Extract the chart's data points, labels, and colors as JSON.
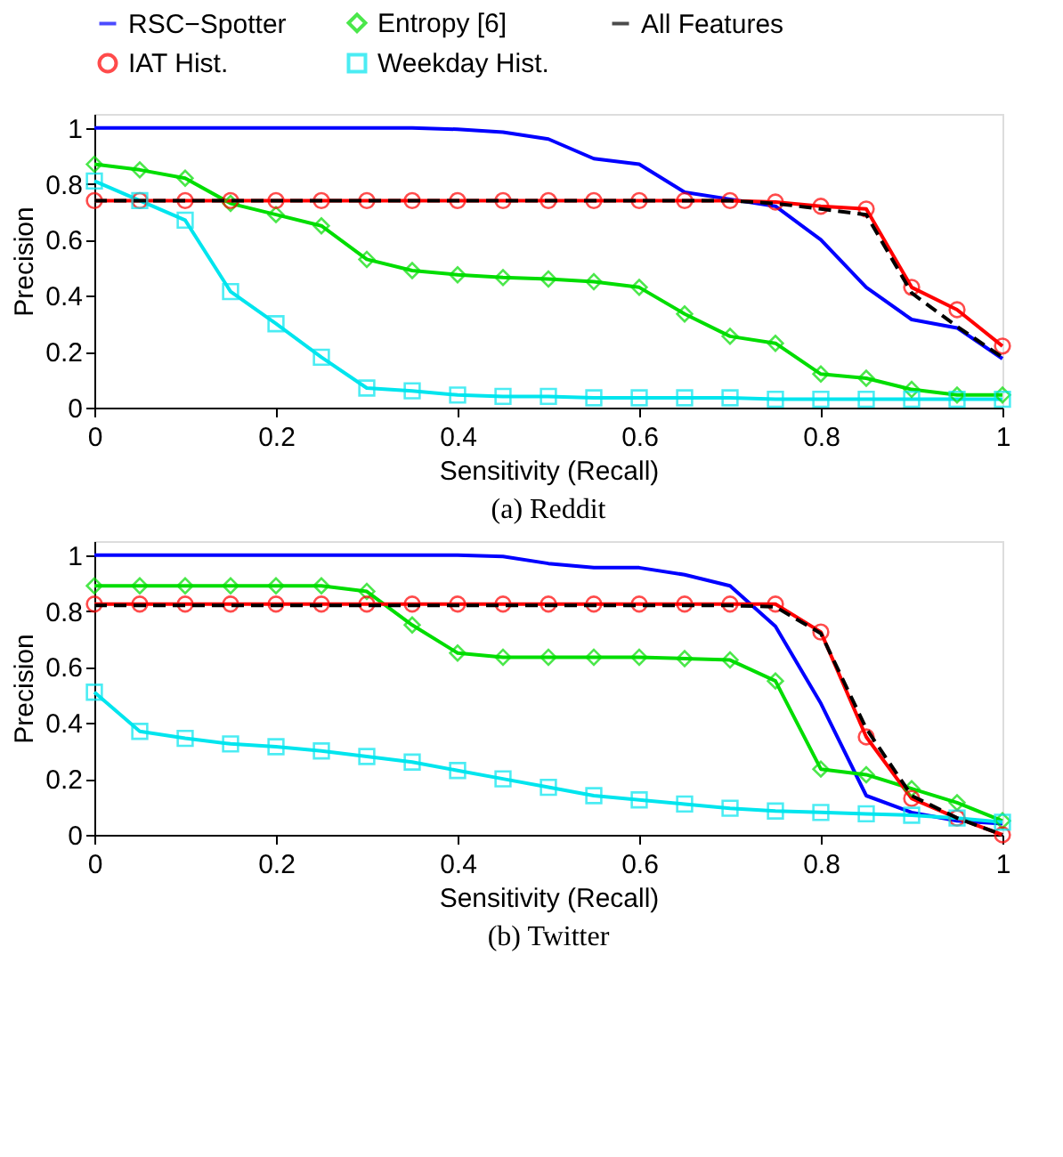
{
  "chart_data": [
    {
      "type": "line",
      "title": "(a) Reddit",
      "xlabel": "Sensitivity (Recall)",
      "ylabel": "Precision",
      "legend": "top",
      "grid": false,
      "x": [
        0,
        0.05,
        0.1,
        0.15,
        0.2,
        0.25,
        0.3,
        0.35,
        0.4,
        0.45,
        0.5,
        0.55,
        0.6,
        0.65,
        0.7,
        0.75,
        0.8,
        0.85,
        0.9,
        0.95,
        1
      ],
      "xlim": [
        0,
        1
      ],
      "ylim": [
        0,
        1.05
      ],
      "xticks": [
        0,
        0.2,
        0.4,
        0.6,
        0.8,
        1
      ],
      "yticks": [
        0,
        0.2,
        0.4,
        0.6,
        0.8,
        1
      ],
      "series": [
        {
          "name": "RSC−Spotter",
          "color": "#0000ff",
          "marker": "none",
          "line_style": "solid",
          "values": [
            1,
            1,
            1,
            1,
            1,
            1,
            1,
            1,
            0.995,
            0.985,
            0.96,
            0.89,
            0.87,
            0.77,
            0.745,
            0.72,
            0.6,
            0.43,
            0.315,
            0.285,
            0.175
          ]
        },
        {
          "name": "Entropy [6]",
          "color": "#00dd00",
          "marker": "diamond",
          "line_style": "solid",
          "values": [
            0.87,
            0.85,
            0.82,
            0.73,
            0.69,
            0.65,
            0.53,
            0.49,
            0.475,
            0.465,
            0.46,
            0.45,
            0.43,
            0.335,
            0.255,
            0.23,
            0.12,
            0.105,
            0.065,
            0.045,
            0.045
          ]
        },
        {
          "name": "All Features",
          "color": "#000000",
          "marker": "none",
          "line_style": "dashed",
          "values": [
            0.74,
            0.74,
            0.74,
            0.74,
            0.74,
            0.74,
            0.74,
            0.74,
            0.74,
            0.74,
            0.74,
            0.74,
            0.74,
            0.74,
            0.74,
            0.73,
            0.71,
            0.69,
            0.41,
            0.29,
            0.18
          ]
        },
        {
          "name": "IAT Hist.",
          "color": "#ff0000",
          "marker": "circle",
          "line_style": "solid",
          "values": [
            0.74,
            0.74,
            0.74,
            0.74,
            0.74,
            0.74,
            0.74,
            0.74,
            0.74,
            0.74,
            0.74,
            0.74,
            0.74,
            0.74,
            0.74,
            0.735,
            0.72,
            0.71,
            0.43,
            0.35,
            0.22
          ]
        },
        {
          "name": "Weekday Hist.",
          "color": "#00e5ee",
          "marker": "square",
          "line_style": "solid",
          "values": [
            0.81,
            0.74,
            0.67,
            0.415,
            0.3,
            0.18,
            0.07,
            0.06,
            0.045,
            0.04,
            0.04,
            0.035,
            0.035,
            0.035,
            0.035,
            0.03,
            0.03,
            0.03,
            0.03,
            0.03,
            0.03
          ]
        }
      ]
    },
    {
      "type": "line",
      "title": "(b) Twitter",
      "xlabel": "Sensitivity (Recall)",
      "ylabel": "Precision",
      "legend": false,
      "grid": false,
      "x": [
        0,
        0.05,
        0.1,
        0.15,
        0.2,
        0.25,
        0.3,
        0.35,
        0.4,
        0.45,
        0.5,
        0.55,
        0.6,
        0.65,
        0.7,
        0.75,
        0.8,
        0.85,
        0.9,
        0.95,
        1
      ],
      "xlim": [
        0,
        1
      ],
      "ylim": [
        0,
        1.05
      ],
      "xticks": [
        0,
        0.2,
        0.4,
        0.6,
        0.8,
        1
      ],
      "yticks": [
        0,
        0.2,
        0.4,
        0.6,
        0.8,
        1
      ],
      "series": [
        {
          "name": "RSC−Spotter",
          "color": "#0000ff",
          "marker": "none",
          "line_style": "solid",
          "values": [
            1,
            1,
            1,
            1,
            1,
            1,
            1,
            1,
            1,
            0.995,
            0.97,
            0.955,
            0.955,
            0.93,
            0.89,
            0.745,
            0.47,
            0.14,
            0.08,
            0.05,
            0.04
          ]
        },
        {
          "name": "Entropy [6]",
          "color": "#00dd00",
          "marker": "diamond",
          "line_style": "solid",
          "values": [
            0.89,
            0.89,
            0.89,
            0.89,
            0.89,
            0.89,
            0.87,
            0.75,
            0.65,
            0.635,
            0.635,
            0.635,
            0.635,
            0.63,
            0.625,
            0.55,
            0.235,
            0.215,
            0.165,
            0.115,
            0.05
          ]
        },
        {
          "name": "All Features",
          "color": "#000000",
          "marker": "none",
          "line_style": "dashed",
          "values": [
            0.82,
            0.82,
            0.82,
            0.82,
            0.82,
            0.82,
            0.82,
            0.82,
            0.82,
            0.82,
            0.82,
            0.82,
            0.82,
            0.82,
            0.82,
            0.815,
            0.72,
            0.38,
            0.14,
            0.06,
            0.0
          ]
        },
        {
          "name": "IAT Hist.",
          "color": "#ff0000",
          "marker": "circle",
          "line_style": "solid",
          "values": [
            0.825,
            0.825,
            0.825,
            0.825,
            0.825,
            0.825,
            0.825,
            0.825,
            0.825,
            0.825,
            0.825,
            0.825,
            0.825,
            0.825,
            0.825,
            0.825,
            0.725,
            0.35,
            0.13,
            0.06,
            0.0
          ]
        },
        {
          "name": "Weekday Hist.",
          "color": "#00e5ee",
          "marker": "square",
          "line_style": "solid",
          "values": [
            0.51,
            0.37,
            0.345,
            0.325,
            0.315,
            0.3,
            0.28,
            0.26,
            0.23,
            0.2,
            0.17,
            0.14,
            0.125,
            0.11,
            0.095,
            0.085,
            0.08,
            0.075,
            0.07,
            0.06,
            0.045
          ]
        }
      ]
    }
  ]
}
